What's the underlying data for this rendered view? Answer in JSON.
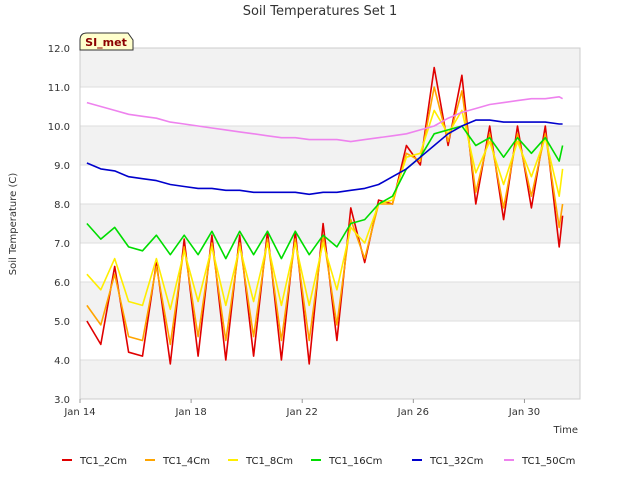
{
  "chart_data": {
    "type": "line",
    "title": "Soil Temperatures Set 1",
    "xlabel": "Time",
    "ylabel": "Soil Temperature (C)",
    "badge": "SI_met",
    "ylim": [
      3.0,
      12.0
    ],
    "xlim": [
      "2024-01-14",
      "2024-02-01"
    ],
    "y_ticks": [
      "3.0",
      "4.0",
      "5.0",
      "6.0",
      "7.0",
      "8.0",
      "9.0",
      "10.0",
      "11.0",
      "12.0"
    ],
    "x_ticks": [
      {
        "date": "2024-01-14",
        "label": "Jan 14"
      },
      {
        "date": "2024-01-18",
        "label": "Jan 18"
      },
      {
        "date": "2024-01-22",
        "label": "Jan 22"
      },
      {
        "date": "2024-01-26",
        "label": "Jan 26"
      },
      {
        "date": "2024-01-30",
        "label": "Jan 30"
      }
    ],
    "grid": "horizontal bands",
    "legend_position": "bottom",
    "x": [
      "2024-01-14 06:00",
      "2024-01-14 18:00",
      "2024-01-15 06:00",
      "2024-01-15 18:00",
      "2024-01-16 06:00",
      "2024-01-16 18:00",
      "2024-01-17 06:00",
      "2024-01-17 18:00",
      "2024-01-18 06:00",
      "2024-01-18 18:00",
      "2024-01-19 06:00",
      "2024-01-19 18:00",
      "2024-01-20 06:00",
      "2024-01-20 18:00",
      "2024-01-21 06:00",
      "2024-01-21 18:00",
      "2024-01-22 06:00",
      "2024-01-22 18:00",
      "2024-01-23 06:00",
      "2024-01-23 18:00",
      "2024-01-24 06:00",
      "2024-01-24 18:00",
      "2024-01-25 06:00",
      "2024-01-25 18:00",
      "2024-01-26 06:00",
      "2024-01-26 18:00",
      "2024-01-27 06:00",
      "2024-01-27 18:00",
      "2024-01-28 06:00",
      "2024-01-28 18:00",
      "2024-01-29 06:00",
      "2024-01-29 18:00",
      "2024-01-30 06:00",
      "2024-01-30 18:00",
      "2024-01-31 06:00",
      "2024-01-31 09:00"
    ],
    "series": [
      {
        "name": "TC1_2Cm",
        "color": "#e00000",
        "values": [
          5.0,
          4.4,
          6.4,
          4.2,
          4.1,
          6.5,
          3.9,
          7.1,
          4.1,
          7.2,
          4.0,
          7.2,
          4.1,
          7.3,
          4.0,
          7.3,
          3.9,
          7.5,
          4.5,
          7.9,
          6.5,
          8.1,
          8.0,
          9.5,
          9.0,
          11.5,
          9.5,
          11.3,
          8.0,
          10.0,
          7.6,
          10.0,
          7.9,
          10.0,
          6.9,
          7.7
        ]
      },
      {
        "name": "TC1_4Cm",
        "color": "#ffa500",
        "values": [
          5.4,
          4.9,
          6.2,
          4.6,
          4.5,
          6.4,
          4.4,
          6.9,
          4.6,
          7.0,
          4.5,
          7.0,
          4.6,
          7.1,
          4.5,
          7.1,
          4.5,
          7.2,
          4.9,
          7.6,
          6.6,
          8.0,
          8.0,
          9.3,
          9.1,
          11.0,
          9.6,
          10.9,
          8.3,
          9.8,
          7.9,
          9.8,
          8.2,
          9.8,
          7.4,
          8.0
        ]
      },
      {
        "name": "TC1_8Cm",
        "color": "#ffee00",
        "values": [
          6.2,
          5.8,
          6.6,
          5.5,
          5.4,
          6.6,
          5.3,
          6.8,
          5.5,
          6.9,
          5.4,
          6.9,
          5.5,
          7.0,
          5.4,
          7.0,
          5.4,
          7.0,
          5.8,
          7.4,
          7.0,
          8.0,
          8.1,
          9.2,
          9.3,
          10.4,
          9.8,
          10.4,
          8.8,
          9.6,
          8.5,
          9.6,
          8.7,
          9.7,
          8.2,
          8.9
        ]
      },
      {
        "name": "TC1_16Cm",
        "color": "#00dd00",
        "values": [
          7.5,
          7.1,
          7.4,
          6.9,
          6.8,
          7.2,
          6.7,
          7.2,
          6.7,
          7.3,
          6.6,
          7.3,
          6.7,
          7.3,
          6.6,
          7.3,
          6.7,
          7.2,
          6.9,
          7.5,
          7.6,
          8.0,
          8.2,
          8.9,
          9.2,
          9.8,
          9.9,
          10.0,
          9.5,
          9.7,
          9.2,
          9.7,
          9.3,
          9.7,
          9.1,
          9.5
        ]
      },
      {
        "name": "TC1_32Cm",
        "color": "#0000cc",
        "values": [
          9.05,
          8.9,
          8.85,
          8.7,
          8.65,
          8.6,
          8.5,
          8.45,
          8.4,
          8.4,
          8.35,
          8.35,
          8.3,
          8.3,
          8.3,
          8.3,
          8.25,
          8.3,
          8.3,
          8.35,
          8.4,
          8.5,
          8.7,
          8.9,
          9.2,
          9.5,
          9.8,
          10.0,
          10.15,
          10.15,
          10.1,
          10.1,
          10.1,
          10.1,
          10.05,
          10.05
        ]
      },
      {
        "name": "TC1_50Cm",
        "color": "#ee82ee",
        "values": [
          10.6,
          10.5,
          10.4,
          10.3,
          10.25,
          10.2,
          10.1,
          10.05,
          10.0,
          9.95,
          9.9,
          9.85,
          9.8,
          9.75,
          9.7,
          9.7,
          9.65,
          9.65,
          9.65,
          9.6,
          9.65,
          9.7,
          9.75,
          9.8,
          9.9,
          10.0,
          10.2,
          10.35,
          10.45,
          10.55,
          10.6,
          10.65,
          10.7,
          10.7,
          10.75,
          10.7
        ]
      }
    ]
  }
}
